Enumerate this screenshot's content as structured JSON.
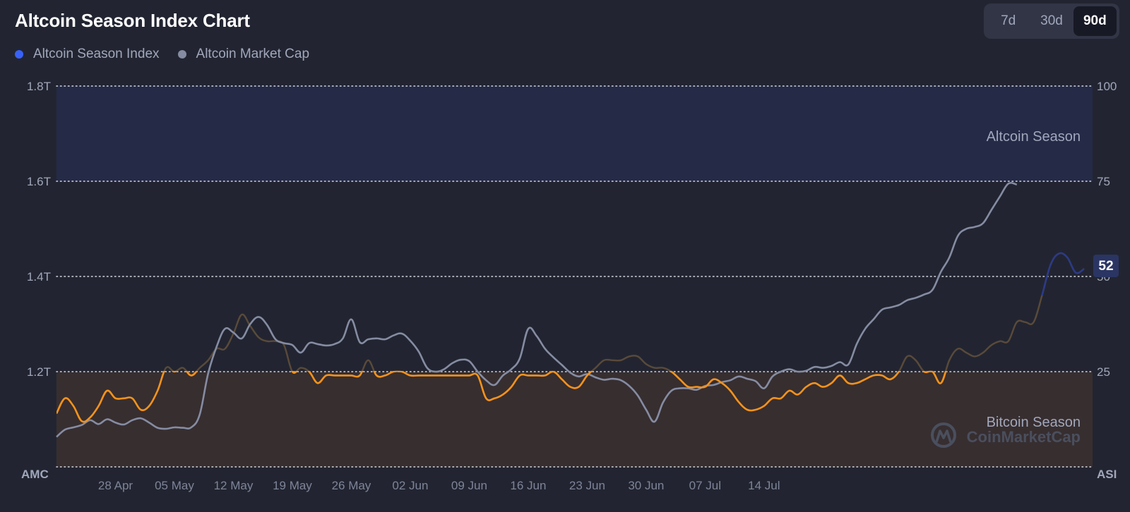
{
  "header": {
    "title": "Altcoin Season Index Chart"
  },
  "legend": [
    {
      "label": "Altcoin Season Index",
      "color": "#3861fb"
    },
    {
      "label": "Altcoin Market Cap",
      "color": "#858ca2"
    }
  ],
  "range_buttons": [
    {
      "label": "7d",
      "active": false
    },
    {
      "label": "30d",
      "active": false
    },
    {
      "label": "90d",
      "active": true
    }
  ],
  "colors": {
    "background": "#222531",
    "index_line_orange": "#f7931a",
    "market_cap_line": "#858ca2",
    "altcoin_zone": "#252a47",
    "bitcoin_zone": "#372e30",
    "current_badge": "#2a3563"
  },
  "current_value": "52",
  "watermark": {
    "brand": "CoinMarketCap",
    "logo_icon": "coinmarketcap-logo-icon"
  },
  "chart_data": {
    "type": "line",
    "x_tick_labels": [
      "28 Apr",
      "05 May",
      "12 May",
      "19 May",
      "26 May",
      "02 Jun",
      "09 Jun",
      "16 Jun",
      "23 Jun",
      "30 Jun",
      "07 Jul",
      "14 Jul"
    ],
    "left_axis": {
      "name": "AMC",
      "ticks": [
        "1.8T",
        "1.6T",
        "1.4T",
        "1.2T"
      ],
      "ylim": [
        1.0,
        1.8
      ],
      "unit": "T"
    },
    "right_axis": {
      "name": "ASI",
      "ticks": [
        "100",
        "75",
        "50",
        "25"
      ],
      "ylim": [
        0,
        100
      ]
    },
    "zones": [
      {
        "label": "Altcoin Season",
        "range": [
          75,
          100
        ]
      },
      {
        "label": "Bitcoin Season",
        "range": [
          0,
          25
        ]
      }
    ],
    "grid": "dotted horizontal",
    "legend_placement": "top-left",
    "start_date": "2025-04-21",
    "series": [
      {
        "name": "Altcoin Season Index",
        "axis": "right",
        "points": [
          [
            0,
            14
          ],
          [
            1,
            18
          ],
          [
            2,
            16
          ],
          [
            3,
            12
          ],
          [
            4,
            13
          ],
          [
            5,
            16
          ],
          [
            6,
            20
          ],
          [
            7,
            18
          ],
          [
            8,
            18
          ],
          [
            9,
            18
          ],
          [
            10,
            15
          ],
          [
            11,
            16
          ],
          [
            12,
            20
          ],
          [
            13,
            26
          ],
          [
            14,
            25
          ],
          [
            15,
            26
          ],
          [
            16,
            24
          ],
          [
            17,
            26
          ],
          [
            18,
            28
          ],
          [
            19,
            31
          ],
          [
            20,
            31
          ],
          [
            21,
            35
          ],
          [
            22,
            40
          ],
          [
            23,
            37
          ],
          [
            24,
            34
          ],
          [
            25,
            33
          ],
          [
            26,
            33
          ],
          [
            27,
            32
          ],
          [
            28,
            25
          ],
          [
            29,
            26
          ],
          [
            30,
            25
          ],
          [
            31,
            22
          ],
          [
            32,
            24
          ],
          [
            33,
            24
          ],
          [
            34,
            24
          ],
          [
            35,
            24
          ],
          [
            36,
            24
          ],
          [
            37,
            28
          ],
          [
            38,
            24
          ],
          [
            39,
            24
          ],
          [
            40,
            25
          ],
          [
            41,
            25
          ],
          [
            42,
            24
          ],
          [
            43,
            24
          ],
          [
            44,
            24
          ],
          [
            45,
            24
          ],
          [
            46,
            24
          ],
          [
            47,
            24
          ],
          [
            48,
            24
          ],
          [
            49,
            24
          ],
          [
            50,
            24
          ],
          [
            51,
            18
          ],
          [
            52,
            18
          ],
          [
            53,
            19
          ],
          [
            54,
            21
          ],
          [
            55,
            24
          ],
          [
            56,
            24
          ],
          [
            57,
            24
          ],
          [
            58,
            24
          ],
          [
            59,
            25
          ],
          [
            60,
            23
          ],
          [
            61,
            21
          ],
          [
            62,
            21
          ],
          [
            63,
            24
          ],
          [
            64,
            26
          ],
          [
            65,
            28
          ],
          [
            66,
            28
          ],
          [
            67,
            28
          ],
          [
            68,
            29
          ],
          [
            69,
            29
          ],
          [
            70,
            27
          ],
          [
            71,
            26
          ],
          [
            72,
            26
          ],
          [
            73,
            25
          ],
          [
            74,
            23
          ],
          [
            75,
            21
          ],
          [
            76,
            21
          ],
          [
            77,
            21
          ],
          [
            78,
            23
          ],
          [
            79,
            22
          ],
          [
            80,
            20
          ],
          [
            81,
            17
          ],
          [
            82,
            15
          ],
          [
            83,
            15
          ],
          [
            84,
            16
          ],
          [
            85,
            18
          ],
          [
            86,
            18
          ],
          [
            87,
            20
          ],
          [
            88,
            19
          ],
          [
            89,
            21
          ],
          [
            90,
            22
          ],
          [
            91,
            21
          ],
          [
            92,
            22
          ],
          [
            93,
            24
          ],
          [
            94,
            22
          ],
          [
            95,
            22
          ],
          [
            96,
            23
          ],
          [
            97,
            24
          ],
          [
            98,
            24
          ],
          [
            99,
            23
          ],
          [
            100,
            25
          ],
          [
            101,
            29
          ],
          [
            102,
            28
          ],
          [
            103,
            25
          ],
          [
            104,
            25
          ],
          [
            105,
            22
          ],
          [
            106,
            28
          ],
          [
            107,
            31
          ],
          [
            108,
            30
          ],
          [
            109,
            29
          ],
          [
            110,
            30
          ],
          [
            111,
            32
          ],
          [
            112,
            33
          ],
          [
            113,
            33
          ],
          [
            114,
            38
          ],
          [
            115,
            38
          ],
          [
            116,
            38
          ],
          [
            117,
            45
          ],
          [
            118,
            53
          ],
          [
            119,
            56
          ],
          [
            120,
            55
          ],
          [
            121,
            51
          ],
          [
            122,
            52
          ]
        ]
      },
      {
        "name": "Altcoin Market Cap",
        "axis": "left",
        "points": [
          [
            0,
            1.063
          ],
          [
            1,
            1.078
          ],
          [
            2,
            1.083
          ],
          [
            3,
            1.088
          ],
          [
            4,
            1.098
          ],
          [
            5,
            1.09
          ],
          [
            6,
            1.1
          ],
          [
            7,
            1.093
          ],
          [
            8,
            1.089
          ],
          [
            9,
            1.098
          ],
          [
            10,
            1.102
          ],
          [
            11,
            1.093
          ],
          [
            12,
            1.082
          ],
          [
            13,
            1.08
          ],
          [
            14,
            1.083
          ],
          [
            15,
            1.082
          ],
          [
            16,
            1.083
          ],
          [
            17,
            1.11
          ],
          [
            18,
            1.196
          ],
          [
            19,
            1.252
          ],
          [
            20,
            1.29
          ],
          [
            21,
            1.282
          ],
          [
            22,
            1.27
          ],
          [
            23,
            1.3
          ],
          [
            24,
            1.315
          ],
          [
            25,
            1.298
          ],
          [
            26,
            1.268
          ],
          [
            27,
            1.26
          ],
          [
            28,
            1.256
          ],
          [
            29,
            1.24
          ],
          [
            30,
            1.26
          ],
          [
            31,
            1.258
          ],
          [
            32,
            1.255
          ],
          [
            33,
            1.258
          ],
          [
            34,
            1.27
          ],
          [
            35,
            1.31
          ],
          [
            36,
            1.262
          ],
          [
            37,
            1.268
          ],
          [
            38,
            1.27
          ],
          [
            39,
            1.268
          ],
          [
            40,
            1.276
          ],
          [
            41,
            1.28
          ],
          [
            42,
            1.265
          ],
          [
            43,
            1.242
          ],
          [
            44,
            1.208
          ],
          [
            45,
            1.2
          ],
          [
            46,
            1.205
          ],
          [
            47,
            1.218
          ],
          [
            48,
            1.225
          ],
          [
            49,
            1.222
          ],
          [
            50,
            1.2
          ],
          [
            51,
            1.182
          ],
          [
            52,
            1.172
          ],
          [
            53,
            1.192
          ],
          [
            54,
            1.205
          ],
          [
            55,
            1.228
          ],
          [
            56,
            1.29
          ],
          [
            57,
            1.275
          ],
          [
            58,
            1.248
          ],
          [
            59,
            1.23
          ],
          [
            60,
            1.214
          ],
          [
            61,
            1.198
          ],
          [
            62,
            1.19
          ],
          [
            63,
            1.195
          ],
          [
            64,
            1.188
          ],
          [
            65,
            1.183
          ],
          [
            66,
            1.185
          ],
          [
            67,
            1.182
          ],
          [
            68,
            1.17
          ],
          [
            69,
            1.15
          ],
          [
            70,
            1.12
          ],
          [
            71,
            1.095
          ],
          [
            72,
            1.135
          ],
          [
            73,
            1.16
          ],
          [
            74,
            1.165
          ],
          [
            75,
            1.165
          ],
          [
            76,
            1.162
          ],
          [
            77,
            1.17
          ],
          [
            78,
            1.172
          ],
          [
            79,
            1.178
          ],
          [
            80,
            1.182
          ],
          [
            81,
            1.19
          ],
          [
            82,
            1.185
          ],
          [
            83,
            1.18
          ],
          [
            84,
            1.165
          ],
          [
            85,
            1.19
          ],
          [
            86,
            1.2
          ],
          [
            87,
            1.205
          ],
          [
            88,
            1.2
          ],
          [
            89,
            1.202
          ],
          [
            90,
            1.21
          ],
          [
            91,
            1.208
          ],
          [
            92,
            1.212
          ],
          [
            93,
            1.22
          ],
          [
            94,
            1.215
          ],
          [
            95,
            1.258
          ],
          [
            96,
            1.29
          ],
          [
            97,
            1.31
          ],
          [
            98,
            1.33
          ],
          [
            99,
            1.335
          ],
          [
            100,
            1.34
          ],
          [
            101,
            1.35
          ],
          [
            102,
            1.355
          ],
          [
            103,
            1.362
          ],
          [
            104,
            1.372
          ],
          [
            105,
            1.41
          ],
          [
            106,
            1.44
          ],
          [
            107,
            1.485
          ],
          [
            108,
            1.5
          ],
          [
            109,
            1.504
          ],
          [
            110,
            1.512
          ],
          [
            111,
            1.54
          ],
          [
            112,
            1.568
          ],
          [
            113,
            1.595
          ],
          [
            114,
            1.593
          ]
        ]
      }
    ]
  }
}
